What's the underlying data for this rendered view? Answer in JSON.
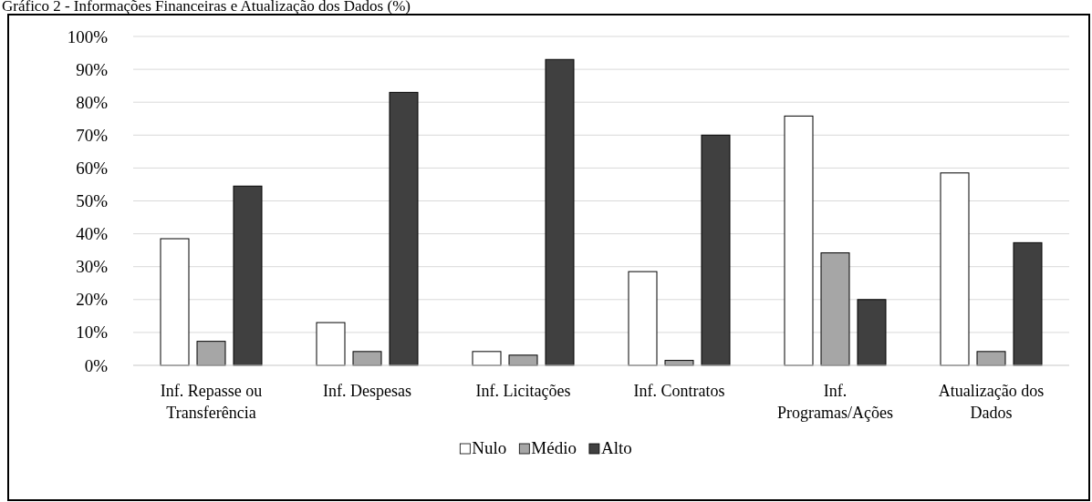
{
  "chart_data": {
    "type": "bar",
    "title": "Gráfico 2 - Informações Financeiras e Atualização dos Dados (%)",
    "categories": [
      "Inf. Repasse ou Transferência",
      "Inf. Despesas",
      "Inf. Licitações",
      "Inf. Contratos",
      "Inf. Programas/Ações",
      "Atualização dos Dados"
    ],
    "series": [
      {
        "name": "Nulo",
        "color": "#ffffff",
        "values": [
          38.5,
          13,
          4.2,
          28.5,
          75.8,
          58.5
        ]
      },
      {
        "name": "Médio",
        "color": "#a6a6a6",
        "values": [
          7.3,
          4.2,
          3.1,
          1.5,
          34.2,
          4.2
        ]
      },
      {
        "name": "Alto",
        "color": "#404040",
        "values": [
          54.5,
          83,
          93,
          70,
          20,
          37.3
        ]
      }
    ],
    "ylim": [
      0,
      100
    ],
    "yticks": [
      {
        "value": 0,
        "label": "0%"
      },
      {
        "value": 10,
        "label": "10%"
      },
      {
        "value": 20,
        "label": "20%"
      },
      {
        "value": 30,
        "label": "30%"
      },
      {
        "value": 40,
        "label": "40%"
      },
      {
        "value": 50,
        "label": "50%"
      },
      {
        "value": 60,
        "label": "60%"
      },
      {
        "value": 70,
        "label": "70%"
      },
      {
        "value": 80,
        "label": "80%"
      },
      {
        "value": 90,
        "label": "90%"
      },
      {
        "value": 100,
        "label": "100%"
      }
    ],
    "grid": "y",
    "legend": "bottom"
  }
}
